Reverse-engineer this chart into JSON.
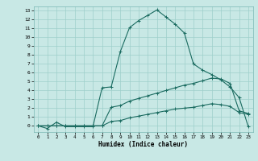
{
  "title": "",
  "xlabel": "Humidex (Indice chaleur)",
  "bg_color": "#c8e8e5",
  "grid_color": "#9ecfcb",
  "line_color": "#1a6b60",
  "xlim": [
    -0.5,
    23.5
  ],
  "ylim": [
    -0.7,
    13.5
  ],
  "xticks": [
    0,
    1,
    2,
    3,
    4,
    5,
    6,
    7,
    8,
    9,
    10,
    11,
    12,
    13,
    14,
    15,
    16,
    17,
    18,
    19,
    20,
    21,
    22,
    23
  ],
  "yticks": [
    0,
    1,
    2,
    3,
    4,
    5,
    6,
    7,
    8,
    9,
    10,
    11,
    12,
    13
  ],
  "line1_x": [
    0,
    1,
    2,
    3,
    4,
    5,
    6,
    7,
    8,
    9,
    10,
    11,
    12,
    13,
    14,
    15,
    16,
    17,
    18,
    19,
    20,
    21,
    22,
    23
  ],
  "line1_y": [
    0,
    -0.3,
    0.4,
    -0.1,
    -0.1,
    -0.1,
    -0.1,
    4.3,
    4.4,
    8.4,
    11.1,
    11.9,
    12.5,
    13.1,
    12.3,
    11.5,
    10.5,
    7.0,
    6.3,
    5.8,
    5.2,
    4.4,
    3.2,
    -0.1
  ],
  "line2_x": [
    0,
    1,
    2,
    3,
    4,
    5,
    6,
    7,
    8,
    9,
    10,
    11,
    12,
    13,
    14,
    15,
    16,
    17,
    18,
    19,
    20,
    21,
    22,
    23
  ],
  "line2_y": [
    0,
    0,
    0,
    0,
    0,
    0,
    0,
    0,
    2.1,
    2.3,
    2.8,
    3.1,
    3.4,
    3.7,
    4.0,
    4.3,
    4.6,
    4.8,
    5.1,
    5.4,
    5.3,
    4.8,
    1.7,
    1.4
  ],
  "line3_x": [
    0,
    1,
    2,
    3,
    4,
    5,
    6,
    7,
    8,
    9,
    10,
    11,
    12,
    13,
    14,
    15,
    16,
    17,
    18,
    19,
    20,
    21,
    22,
    23
  ],
  "line3_y": [
    0,
    0,
    0,
    0,
    0,
    0,
    0,
    0,
    0.5,
    0.6,
    0.9,
    1.1,
    1.3,
    1.5,
    1.7,
    1.9,
    2.0,
    2.1,
    2.3,
    2.5,
    2.4,
    2.2,
    1.5,
    1.3
  ]
}
